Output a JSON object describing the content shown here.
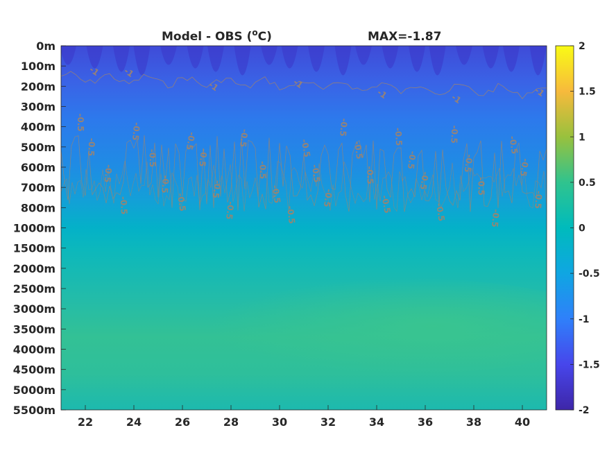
{
  "chart_data": {
    "type": "heatmap",
    "title_left": "Model - OBS (",
    "title_unit_sup": "o",
    "title_unit_tail": "C)",
    "title_right": "MAX=-1.87",
    "x_range": [
      21,
      41
    ],
    "x_ticks": [
      22,
      24,
      26,
      28,
      30,
      32,
      34,
      36,
      38,
      40
    ],
    "y_tick_labels": [
      "0m",
      "100m",
      "200m",
      "300m",
      "400m",
      "500m",
      "600m",
      "700m",
      "800m",
      "1000m",
      "1500m",
      "2000m",
      "2500m",
      "3000m",
      "3500m",
      "4000m",
      "4500m",
      "5000m",
      "5500m"
    ],
    "colorbar": {
      "range": [
        -2,
        2
      ],
      "tick_labels": [
        "2",
        "1.5",
        "1",
        "0.5",
        "0",
        "-0.5",
        "-1",
        "-1.5",
        "-2"
      ]
    },
    "contour_labels": [
      "-1",
      "-1",
      "-1",
      "-1",
      "-1",
      "-1",
      "-1",
      "-0.5",
      "-0.5",
      "-0.5",
      "-0.5",
      "-0.5",
      "-0.5",
      "-0.5",
      "-0.5",
      "-0.5",
      "-0.5",
      "-0.5",
      "-0.5",
      "-0.5",
      "-0.5",
      "-0.5",
      "-0.5",
      "-0.5",
      "-0.5",
      "-0.5",
      "-0.5",
      "-0.5",
      "-0.5",
      "-0.5",
      "-0.5",
      "-0.5",
      "-0.5",
      "-0.5",
      "-0.5",
      "-0.5",
      "-0.5",
      "-0.5",
      "-0.5",
      "-0.5",
      "-0.5"
    ],
    "colormap": [
      "#3e26a8",
      "#4746eb",
      "#2f80fa",
      "#0fa6e2",
      "#00bbbc",
      "#30c38e",
      "#99c13d",
      "#f7ba3c",
      "#f9fb15"
    ]
  }
}
